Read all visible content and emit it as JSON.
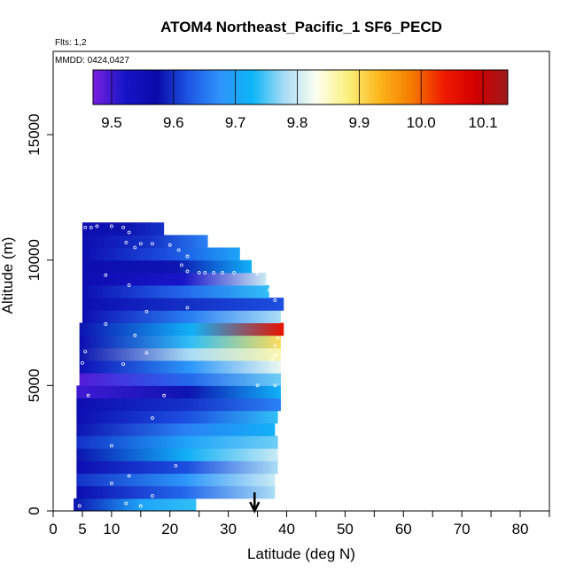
{
  "chart_data": {
    "type": "heatmap",
    "title": "ATOM4 Northeast_Pacific_1 SF6_PECD",
    "flights_note": "Flts: 1,2",
    "dates_note": "MMDD: 0424,0427",
    "xlabel": "Latitude (deg N)",
    "ylabel": "Altitude (m)",
    "xlim": [
      0,
      85
    ],
    "ylim": [
      0,
      18000
    ],
    "x_ticks": [
      0,
      5,
      10,
      20,
      30,
      40,
      50,
      60,
      70,
      80
    ],
    "y_ticks": [
      0,
      5000,
      10000,
      15000
    ],
    "colorbar": {
      "min": 9.47,
      "max": 10.14,
      "ticks": [
        9.5,
        9.6,
        9.7,
        9.8,
        9.9,
        10.0,
        10.1
      ],
      "tick_labels": [
        "9.5",
        "9.6",
        "9.7",
        "9.8",
        "9.9",
        "10.0",
        "10.1"
      ],
      "colors": [
        "#7a1ee0",
        "#1515c8",
        "#0a0aa8",
        "#1e56e6",
        "#2f94fa",
        "#0cb6f7",
        "#a9dcf6",
        "#fcfff0",
        "#fbf07c",
        "#fbb51a",
        "#f57a00",
        "#f01a00",
        "#d20000",
        "#9e1a1a"
      ]
    },
    "marker": {
      "latitude": 34.5,
      "label": "arrow"
    },
    "grid": false,
    "rows": [
      {
        "alt0": 0,
        "alt1": 500,
        "lat0": 3.5,
        "lat1": 24.5,
        "left": 9.58,
        "mid": 9.7,
        "right": 9.74
      },
      {
        "alt0": 500,
        "alt1": 1000,
        "lat0": 4,
        "lat1": 38,
        "left": 9.56,
        "mid": 9.64,
        "right": 9.78
      },
      {
        "alt0": 1000,
        "alt1": 1500,
        "lat0": 4,
        "lat1": 38,
        "left": 9.6,
        "mid": 9.68,
        "right": 9.8
      },
      {
        "alt0": 1500,
        "alt1": 2000,
        "lat0": 4,
        "lat1": 38.5,
        "left": 9.56,
        "mid": 9.62,
        "right": 9.78
      },
      {
        "alt0": 2000,
        "alt1": 2500,
        "lat0": 4,
        "lat1": 38.5,
        "left": 9.58,
        "mid": 9.72,
        "right": 9.8
      },
      {
        "alt0": 2500,
        "alt1": 3000,
        "lat0": 4,
        "lat1": 38.5,
        "left": 9.6,
        "mid": 9.7,
        "right": 9.76
      },
      {
        "alt0": 3000,
        "alt1": 3500,
        "lat0": 4,
        "lat1": 38,
        "left": 9.58,
        "mid": 9.66,
        "right": 9.72
      },
      {
        "alt0": 3500,
        "alt1": 4000,
        "lat0": 4,
        "lat1": 38.5,
        "left": 9.56,
        "mid": 9.62,
        "right": 9.74
      },
      {
        "alt0": 4000,
        "alt1": 4500,
        "lat0": 4,
        "lat1": 39,
        "left": 9.56,
        "mid": 9.6,
        "right": 9.66
      },
      {
        "alt0": 4500,
        "alt1": 5000,
        "lat0": 4,
        "lat1": 39,
        "left": 9.5,
        "mid": 9.58,
        "right": 9.72
      },
      {
        "alt0": 5000,
        "alt1": 5500,
        "lat0": 4.5,
        "lat1": 39,
        "left": 9.49,
        "mid": 9.64,
        "right": 9.76
      },
      {
        "alt0": 5500,
        "alt1": 6000,
        "lat0": 4.5,
        "lat1": 39,
        "left": 9.55,
        "mid": 9.68,
        "right": 9.82
      },
      {
        "alt0": 6000,
        "alt1": 6500,
        "lat0": 4.5,
        "lat1": 39,
        "left": 9.58,
        "mid": 9.78,
        "right": 9.86
      },
      {
        "alt0": 6500,
        "alt1": 7000,
        "lat0": 4.5,
        "lat1": 39,
        "left": 9.56,
        "mid": 9.74,
        "right": 9.9
      },
      {
        "alt0": 7000,
        "alt1": 7500,
        "lat0": 4.5,
        "lat1": 39.5,
        "left": 9.58,
        "mid": 9.72,
        "right": 10.05
      },
      {
        "alt0": 7500,
        "alt1": 8000,
        "lat0": 5,
        "lat1": 39,
        "left": 9.56,
        "mid": 9.66,
        "right": 9.78
      },
      {
        "alt0": 8000,
        "alt1": 8500,
        "lat0": 5,
        "lat1": 39.5,
        "left": 9.56,
        "mid": 9.6,
        "right": 9.62
      },
      {
        "alt0": 8500,
        "alt1": 9000,
        "lat0": 5,
        "lat1": 37,
        "left": 9.56,
        "mid": 9.64,
        "right": 9.74
      },
      {
        "alt0": 9000,
        "alt1": 9500,
        "lat0": 5,
        "lat1": 36.5,
        "left": 9.56,
        "mid": 9.52,
        "right": 9.8
      },
      {
        "alt0": 9500,
        "alt1": 10000,
        "lat0": 5,
        "lat1": 34,
        "left": 9.56,
        "mid": 9.58,
        "right": 9.72
      },
      {
        "alt0": 10000,
        "alt1": 10500,
        "lat0": 5,
        "lat1": 32,
        "left": 9.56,
        "mid": 9.62,
        "right": 9.7
      },
      {
        "alt0": 10500,
        "alt1": 11000,
        "lat0": 5,
        "lat1": 26.5,
        "left": 9.56,
        "mid": 9.6,
        "right": 9.66
      },
      {
        "alt0": 11000,
        "alt1": 11500,
        "lat0": 5,
        "lat1": 19,
        "left": 9.56,
        "mid": 9.58,
        "right": 9.6
      }
    ]
  }
}
